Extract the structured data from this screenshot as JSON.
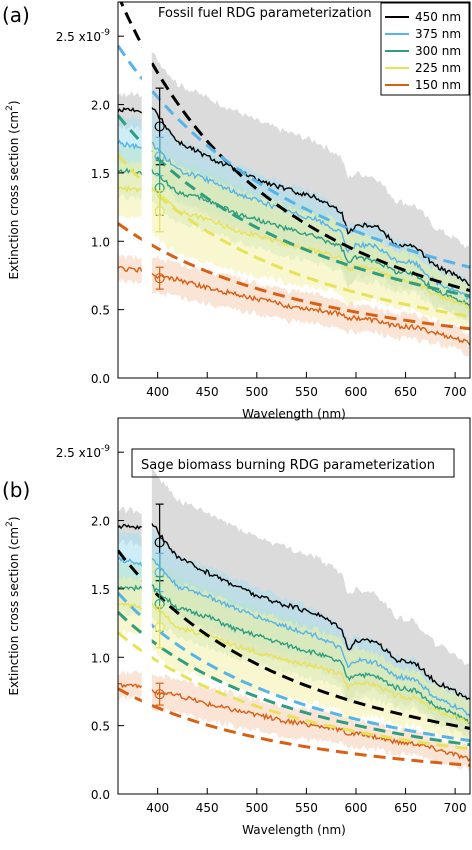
{
  "chart_data": [
    {
      "type": "line",
      "panel_label": "(a)",
      "title": "Fossil fuel RDG parameterization",
      "xlabel": "Wavelength (nm)",
      "ylabel": "Extinction cross section (cm²)",
      "y_multiplier_label": "x10⁻⁹",
      "xlim": [
        360,
        715
      ],
      "ylim": [
        0.0,
        2.75
      ],
      "xticks": [
        400,
        450,
        500,
        550,
        600,
        650,
        700
      ],
      "yticks": [
        0.0,
        0.5,
        1.0,
        1.5,
        2.0,
        2.5
      ],
      "ytick_labels": [
        "0.0",
        "0.5",
        "1.0",
        "1.5",
        "2.0",
        "2.5 x10⁻⁹"
      ],
      "gap_x": [
        384,
        394
      ],
      "legend_position": "top-right",
      "series": [
        {
          "name": "450 nm",
          "color": "#000000",
          "band_color": "#bdbdbd",
          "x": [
            360,
            384,
            394,
            420,
            450,
            480,
            500,
            530,
            560,
            585,
            592,
            600,
            620,
            640,
            660,
            680,
            700,
            715
          ],
          "y": [
            1.96,
            1.95,
            1.98,
            1.73,
            1.62,
            1.52,
            1.45,
            1.38,
            1.32,
            1.22,
            1.06,
            1.12,
            1.12,
            0.98,
            0.96,
            0.82,
            0.75,
            0.68
          ],
          "band": [
            0.12,
            0.12,
            0.4,
            0.42,
            0.43,
            0.43,
            0.43,
            0.42,
            0.41,
            0.4,
            0.4,
            0.38,
            0.35,
            0.32,
            0.3,
            0.28,
            0.27,
            0.26
          ],
          "fit_y0": 2.8,
          "fit_y1": 0.64,
          "point": {
            "x": 402,
            "y": 1.84,
            "err": 0.28
          }
        },
        {
          "name": "375 nm",
          "color": "#56b4e9",
          "band_color": "#a6dfee",
          "x": [
            360,
            384,
            394,
            420,
            450,
            480,
            500,
            530,
            560,
            585,
            592,
            600,
            620,
            640,
            660,
            680,
            700,
            715
          ],
          "y": [
            1.72,
            1.68,
            1.72,
            1.52,
            1.45,
            1.35,
            1.3,
            1.22,
            1.16,
            1.06,
            0.92,
            0.98,
            0.96,
            0.86,
            0.84,
            0.7,
            0.64,
            0.58
          ],
          "band": [
            0.2,
            0.2,
            0.23,
            0.22,
            0.22,
            0.21,
            0.21,
            0.2,
            0.19,
            0.18,
            0.18,
            0.17,
            0.16,
            0.15,
            0.14,
            0.13,
            0.12,
            0.12
          ],
          "fit_y0": 2.43,
          "fit_y1": 0.81,
          "point": {
            "x": 402,
            "y": 1.62,
            "err": 0.14
          }
        },
        {
          "name": "300 nm",
          "color": "#2e9e7e",
          "band_color": "#b7e1cf",
          "x": [
            360,
            384,
            394,
            420,
            450,
            480,
            500,
            530,
            560,
            585,
            592,
            600,
            620,
            640,
            660,
            680,
            700,
            715
          ],
          "y": [
            1.52,
            1.5,
            1.52,
            1.36,
            1.3,
            1.2,
            1.16,
            1.09,
            1.03,
            0.96,
            0.84,
            0.88,
            0.86,
            0.78,
            0.76,
            0.64,
            0.58,
            0.53
          ],
          "band": [
            0.19,
            0.19,
            0.23,
            0.22,
            0.22,
            0.21,
            0.2,
            0.2,
            0.19,
            0.18,
            0.18,
            0.17,
            0.16,
            0.15,
            0.14,
            0.13,
            0.12,
            0.12
          ],
          "fit_y0": 1.92,
          "fit_y1": 0.6,
          "point": {
            "x": 402,
            "y": 1.39,
            "err": 0.2
          }
        },
        {
          "name": "225 nm",
          "color": "#e8e25a",
          "band_color": "#f3f0a8",
          "x": [
            360,
            384,
            394,
            420,
            450,
            480,
            500,
            530,
            560,
            585,
            592,
            600,
            620,
            640,
            660,
            680,
            700,
            715
          ],
          "y": [
            1.39,
            1.37,
            1.39,
            1.22,
            1.16,
            1.08,
            1.04,
            0.98,
            0.93,
            0.88,
            0.78,
            0.82,
            0.8,
            0.72,
            0.7,
            0.61,
            0.56,
            0.52
          ],
          "band": [
            0.2,
            0.2,
            0.33,
            0.32,
            0.31,
            0.3,
            0.29,
            0.28,
            0.27,
            0.26,
            0.26,
            0.25,
            0.23,
            0.21,
            0.2,
            0.18,
            0.17,
            0.16
          ],
          "fit_y0": 1.63,
          "fit_y1": 0.45,
          "point": {
            "x": 402,
            "y": 1.22,
            "err": 0.15
          }
        },
        {
          "name": "150 nm",
          "color": "#d95f12",
          "band_color": "#f5cdb4",
          "x": [
            360,
            384,
            394,
            420,
            450,
            480,
            500,
            530,
            560,
            585,
            592,
            600,
            620,
            640,
            660,
            680,
            700,
            715
          ],
          "y": [
            0.8,
            0.79,
            0.75,
            0.72,
            0.66,
            0.61,
            0.58,
            0.53,
            0.5,
            0.47,
            0.44,
            0.44,
            0.42,
            0.38,
            0.37,
            0.33,
            0.29,
            0.25
          ],
          "band": [
            0.09,
            0.09,
            0.13,
            0.12,
            0.12,
            0.12,
            0.11,
            0.11,
            0.11,
            0.1,
            0.1,
            0.1,
            0.09,
            0.09,
            0.09,
            0.08,
            0.08,
            0.08
          ],
          "fit_y0": 1.13,
          "fit_y1": 0.36,
          "point": {
            "x": 402,
            "y": 0.73,
            "err": 0.08
          }
        }
      ]
    },
    {
      "type": "line",
      "panel_label": "(b)",
      "title": "Sage biomass burning RDG parameterization",
      "xlabel": "Wavelength (nm)",
      "ylabel": "Extinction cross section (cm²)",
      "y_multiplier_label": "x10⁻⁹",
      "xlim": [
        360,
        715
      ],
      "ylim": [
        0.0,
        2.75
      ],
      "xticks": [
        400,
        450,
        500,
        550,
        600,
        650,
        700
      ],
      "yticks": [
        0.0,
        0.5,
        1.0,
        1.5,
        2.0,
        2.5
      ],
      "ytick_labels": [
        "0.0",
        "0.5",
        "1.0",
        "1.5",
        "2.0",
        "2.5 x10⁻⁹"
      ],
      "gap_x": [
        384,
        394
      ],
      "legend_position": "none",
      "series": [
        {
          "name": "450 nm",
          "color": "#000000",
          "band_color": "#bdbdbd",
          "x": [
            360,
            384,
            394,
            420,
            450,
            480,
            500,
            530,
            560,
            585,
            592,
            600,
            620,
            640,
            660,
            680,
            700,
            715
          ],
          "y": [
            1.96,
            1.95,
            1.98,
            1.73,
            1.62,
            1.52,
            1.45,
            1.38,
            1.32,
            1.22,
            1.06,
            1.12,
            1.12,
            0.98,
            0.96,
            0.82,
            0.75,
            0.68
          ],
          "band": [
            0.12,
            0.12,
            0.4,
            0.42,
            0.43,
            0.43,
            0.43,
            0.42,
            0.41,
            0.4,
            0.4,
            0.38,
            0.35,
            0.32,
            0.3,
            0.28,
            0.27,
            0.26
          ],
          "fit_y0": 1.78,
          "fit_y1": 0.48,
          "point": {
            "x": 402,
            "y": 1.84,
            "err": 0.28
          }
        },
        {
          "name": "375 nm",
          "color": "#56b4e9",
          "band_color": "#a6dfee",
          "x": [
            360,
            384,
            394,
            420,
            450,
            480,
            500,
            530,
            560,
            585,
            592,
            600,
            620,
            640,
            660,
            680,
            700,
            715
          ],
          "y": [
            1.72,
            1.68,
            1.72,
            1.52,
            1.45,
            1.35,
            1.3,
            1.22,
            1.16,
            1.06,
            0.92,
            0.98,
            0.96,
            0.86,
            0.84,
            0.7,
            0.64,
            0.58
          ],
          "band": [
            0.2,
            0.2,
            0.23,
            0.22,
            0.22,
            0.21,
            0.21,
            0.2,
            0.19,
            0.18,
            0.18,
            0.17,
            0.16,
            0.15,
            0.14,
            0.13,
            0.12,
            0.12
          ],
          "fit_y0": 1.47,
          "fit_y1": 0.39,
          "point": {
            "x": 402,
            "y": 1.62,
            "err": 0.14
          }
        },
        {
          "name": "300 nm",
          "color": "#2e9e7e",
          "band_color": "#b7e1cf",
          "x": [
            360,
            384,
            394,
            420,
            450,
            480,
            500,
            530,
            560,
            585,
            592,
            600,
            620,
            640,
            660,
            680,
            700,
            715
          ],
          "y": [
            1.52,
            1.5,
            1.52,
            1.36,
            1.3,
            1.2,
            1.16,
            1.09,
            1.03,
            0.96,
            0.84,
            0.88,
            0.86,
            0.78,
            0.76,
            0.64,
            0.58,
            0.53
          ],
          "band": [
            0.19,
            0.19,
            0.23,
            0.22,
            0.22,
            0.21,
            0.2,
            0.2,
            0.19,
            0.18,
            0.18,
            0.17,
            0.16,
            0.15,
            0.14,
            0.13,
            0.12,
            0.12
          ],
          "fit_y0": 1.33,
          "fit_y1": 0.36,
          "point": {
            "x": 402,
            "y": 1.39,
            "err": 0.2
          }
        },
        {
          "name": "225 nm",
          "color": "#e8e25a",
          "band_color": "#f3f0a8",
          "x": [
            360,
            384,
            394,
            420,
            450,
            480,
            500,
            530,
            560,
            585,
            592,
            600,
            620,
            640,
            660,
            680,
            700,
            715
          ],
          "y": [
            1.39,
            1.37,
            1.39,
            1.22,
            1.16,
            1.08,
            1.04,
            0.98,
            0.93,
            0.88,
            0.78,
            0.82,
            0.8,
            0.72,
            0.7,
            0.61,
            0.56,
            0.52
          ],
          "band": [
            0.2,
            0.2,
            0.33,
            0.32,
            0.31,
            0.3,
            0.29,
            0.28,
            0.27,
            0.26,
            0.26,
            0.25,
            0.23,
            0.21,
            0.2,
            0.18,
            0.17,
            0.16
          ],
          "fit_y0": 1.18,
          "fit_y1": 0.33,
          "point": {
            "x": 402,
            "y": 1.22,
            "err": 0.15
          }
        },
        {
          "name": "150 nm",
          "color": "#d95f12",
          "band_color": "#f5cdb4",
          "x": [
            360,
            384,
            394,
            420,
            450,
            480,
            500,
            530,
            560,
            585,
            592,
            600,
            620,
            640,
            660,
            680,
            700,
            715
          ],
          "y": [
            0.8,
            0.79,
            0.75,
            0.72,
            0.66,
            0.61,
            0.58,
            0.53,
            0.5,
            0.47,
            0.44,
            0.44,
            0.42,
            0.38,
            0.37,
            0.33,
            0.29,
            0.25
          ],
          "band": [
            0.09,
            0.09,
            0.13,
            0.12,
            0.12,
            0.12,
            0.11,
            0.11,
            0.11,
            0.1,
            0.1,
            0.1,
            0.09,
            0.09,
            0.09,
            0.08,
            0.08,
            0.08
          ],
          "fit_y0": 0.77,
          "fit_y1": 0.21,
          "point": {
            "x": 402,
            "y": 0.73,
            "err": 0.08
          }
        }
      ]
    }
  ]
}
